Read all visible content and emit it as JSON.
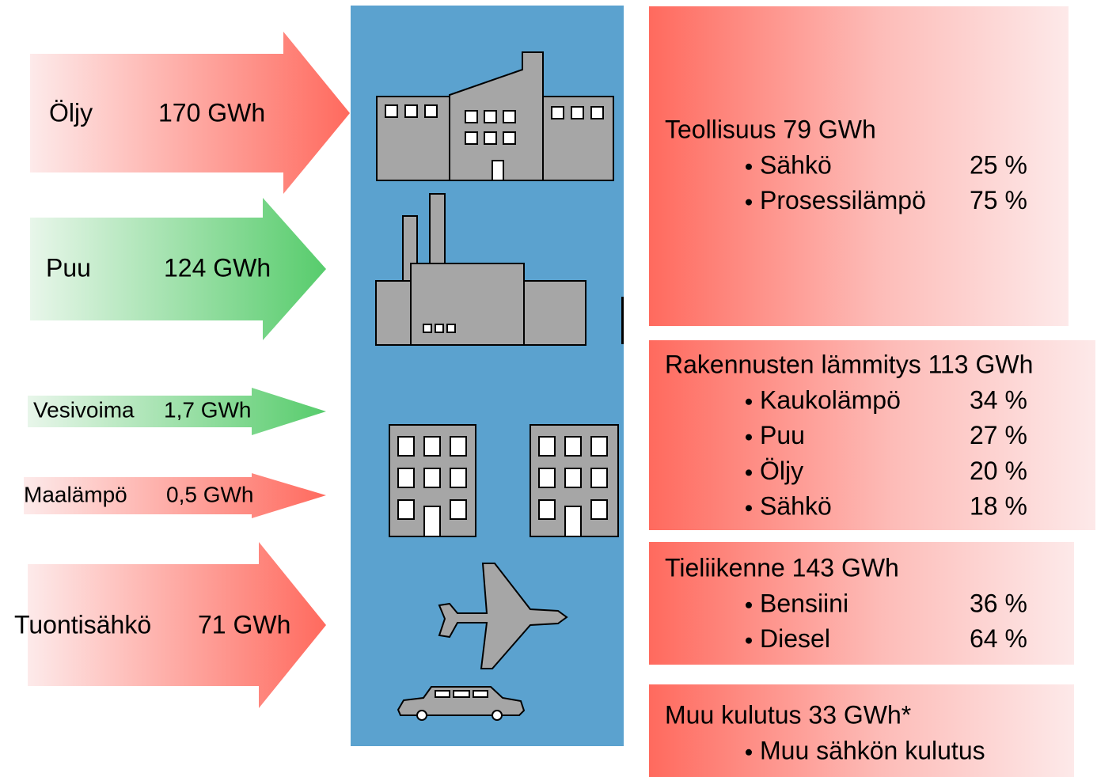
{
  "inputs": [
    {
      "label": "Öljy",
      "amount": "170 GWh"
    },
    {
      "label": "Puu",
      "amount": "124 GWh"
    },
    {
      "label": "Vesivoima",
      "amount": "1,7 GWh"
    },
    {
      "label": "Maalämpö",
      "amount": "0,5 GWh"
    },
    {
      "label": "Tuontisähkö",
      "amount": "71 GWh"
    }
  ],
  "outputs": [
    {
      "title": "Teollisuus 79 GWh",
      "items": [
        {
          "name": "Sähkö",
          "share": "25 %"
        },
        {
          "name": "Prosessilämpö",
          "share": "75 %"
        }
      ]
    },
    {
      "title": "Rakennusten lämmitys 113 GWh",
      "items": [
        {
          "name": "Kaukolämpö",
          "share": "34 %"
        },
        {
          "name": "Puu",
          "share": "27 %"
        },
        {
          "name": "Öljy",
          "share": "20 %"
        },
        {
          "name": "Sähkö",
          "share": "18 %"
        }
      ]
    },
    {
      "title": "Tieliikenne 143 GWh",
      "items": [
        {
          "name": "Bensiini",
          "share": "36 %"
        },
        {
          "name": "Diesel",
          "share": "64 %"
        }
      ]
    },
    {
      "title": "Muu kulutus 33 GWh*",
      "items": [
        {
          "name": "Muu sähkön kulutus"
        }
      ]
    }
  ]
}
